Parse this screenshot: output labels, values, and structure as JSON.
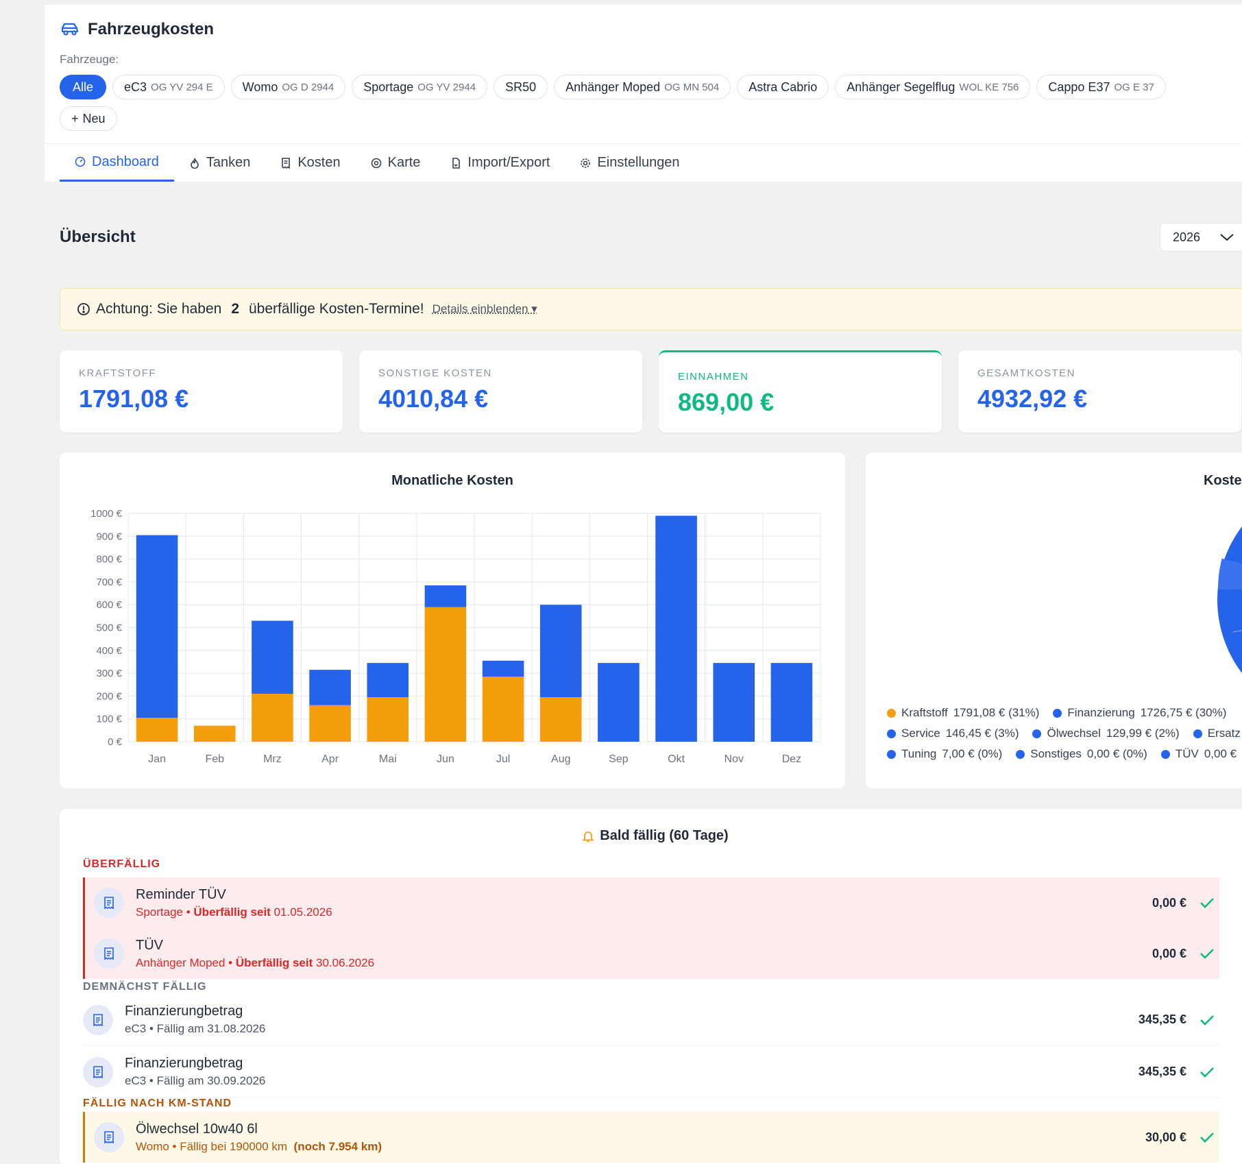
{
  "app": {
    "title": "Fahrzeugkosten"
  },
  "vehicles": {
    "label": "Fahrzeuge:",
    "items": [
      {
        "name": "Alle",
        "plate": "",
        "active": true
      },
      {
        "name": "eC3",
        "plate": "OG YV 294 E"
      },
      {
        "name": "Womo",
        "plate": "OG D 2944"
      },
      {
        "name": "Sportage",
        "plate": "OG YV 2944"
      },
      {
        "name": "SR50",
        "plate": ""
      },
      {
        "name": "Anhänger Moped",
        "plate": "OG MN 504"
      },
      {
        "name": "Astra Cabrio",
        "plate": ""
      },
      {
        "name": "Anhänger Segelflug",
        "plate": "WOL KE 756"
      },
      {
        "name": "Cappo E37",
        "plate": "OG E 37"
      }
    ],
    "new_label": "Neu",
    "new_glyph": "+"
  },
  "tabs": [
    "Dashboard",
    "Tanken",
    "Kosten",
    "Karte",
    "Import/Export",
    "Einstellungen"
  ],
  "overview": {
    "title": "Übersicht",
    "year": "2026"
  },
  "alert": {
    "prefix": "Achtung: Sie haben",
    "count": "2",
    "suffix": "überfällige Kosten-Termine!",
    "details": "Details einblenden ▾"
  },
  "stats": [
    {
      "label": "KRAFTSTOFF",
      "value": "1791,08 €"
    },
    {
      "label": "SONSTIGE KOSTEN",
      "value": "4010,84 €"
    },
    {
      "label": "EINNAHMEN",
      "value": "869,00 €"
    },
    {
      "label": "GESAMTKOSTEN",
      "value": "4932,92 €"
    }
  ],
  "chart_data": {
    "type": "bar",
    "title": "Monatliche Kosten",
    "categories": [
      "Jan",
      "Feb",
      "Mrz",
      "Apr",
      "Mai",
      "Jun",
      "Jul",
      "Aug",
      "Sep",
      "Okt",
      "Nov",
      "Dez"
    ],
    "stacked": true,
    "series": [
      {
        "values": [
          105,
          70,
          210,
          160,
          195,
          590,
          285,
          195,
          0,
          0,
          0,
          0
        ],
        "color": "#f59e0b"
      },
      {
        "values": [
          800,
          0,
          320,
          155,
          150,
          95,
          70,
          405,
          345,
          990,
          345,
          345
        ],
        "color": "#2563eb"
      }
    ],
    "ylim": [
      0,
      1000
    ],
    "yticks": [
      "0 €",
      "100 €",
      "200 €",
      "300 €",
      "400 €",
      "500 €",
      "600 €",
      "700 €",
      "800 €",
      "900 €",
      "1000 €"
    ],
    "grid": true
  },
  "pie": {
    "title": "Kosten",
    "legend": [
      [
        {
          "name": "Kraftstoff",
          "value": "1791,08 € (31%)",
          "color": "#f59e0b"
        },
        {
          "name": "Finanzierung",
          "value": "1726,75 € (30%)",
          "color": "#2563eb"
        }
      ],
      [
        {
          "name": "Service",
          "value": "146,45 € (3%)",
          "color": "#2563eb"
        },
        {
          "name": "Ölwechsel",
          "value": "129,99 € (2%)",
          "color": "#2563eb"
        },
        {
          "name": "Ersatz",
          "value": "",
          "color": "#2563eb"
        }
      ],
      [
        {
          "name": "Tuning",
          "value": "7,00 € (0%)",
          "color": "#2563eb"
        },
        {
          "name": "Sonstiges",
          "value": "0,00 € (0%)",
          "color": "#2563eb"
        },
        {
          "name": "TÜV",
          "value": "0,00 €",
          "color": "#2563eb"
        }
      ]
    ]
  },
  "due": {
    "title": "Bald fällig (60 Tage)",
    "sections": {
      "overdue": "ÜBERFÄLLIG",
      "upcoming": "DEMNÄCHST FÄLLIG",
      "km": "FÄLLIG NACH KM-STAND"
    },
    "overdue": [
      {
        "name": "Reminder TÜV",
        "vehicle": "Sportage",
        "status": "Überfällig seit",
        "date": "01.05.2026",
        "amount": "0,00 €"
      },
      {
        "name": "TÜV",
        "vehicle": "Anhänger Moped",
        "status": "Überfällig seit",
        "date": "30.06.2026",
        "amount": "0,00 €"
      }
    ],
    "upcoming": [
      {
        "name": "Finanzierungbetrag",
        "sub": "eC3 • Fällig am 31.08.2026",
        "amount": "345,35 €"
      },
      {
        "name": "Finanzierungbetrag",
        "sub": "eC3 • Fällig am 30.09.2026",
        "amount": "345,35 €"
      }
    ],
    "km": [
      {
        "name": "Ölwechsel 10w40 6l",
        "sub": "Womo • Fällig bei 190000 km",
        "remaining": "(noch 7.954 km)",
        "amount": "30,00 €"
      }
    ]
  }
}
